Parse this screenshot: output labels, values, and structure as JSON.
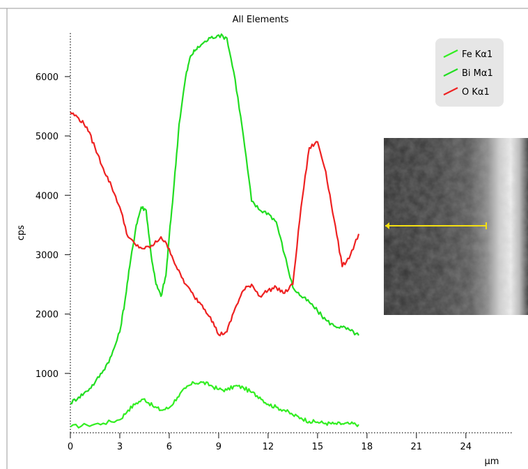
{
  "chart_data": {
    "type": "line",
    "title": "All Elements",
    "xlabel": "µm",
    "ylabel": "cps",
    "xlim": [
      0,
      26.8
    ],
    "ylim": [
      0,
      6750
    ],
    "x_ticks": [
      0,
      3,
      6,
      9,
      12,
      15,
      18,
      21,
      24
    ],
    "y_ticks": [
      1000,
      2000,
      3000,
      4000,
      5000,
      6000
    ],
    "grid": false,
    "legend_position": "top-right",
    "series": [
      {
        "name": "Fe Kα1",
        "color": "#33ee22",
        "x": [
          0,
          1,
          2,
          3,
          3.5,
          4,
          4.5,
          5,
          5.5,
          6,
          6.5,
          7,
          7.5,
          8,
          8.5,
          9,
          9.5,
          10,
          10.5,
          11,
          11.5,
          12,
          12.5,
          13,
          13.5,
          14,
          14.5,
          15,
          15.5,
          16,
          16.5,
          17,
          17.5
        ],
        "values": [
          100,
          130,
          160,
          220,
          380,
          500,
          570,
          450,
          380,
          420,
          600,
          750,
          840,
          850,
          800,
          730,
          720,
          790,
          760,
          680,
          600,
          480,
          430,
          380,
          300,
          250,
          190,
          180,
          160,
          150,
          150,
          150,
          140
        ]
      },
      {
        "name": "Bi Mα1",
        "color": "#22dd22",
        "x": [
          0,
          0.5,
          1,
          1.5,
          2,
          2.5,
          3,
          3.3,
          3.6,
          4,
          4.3,
          4.6,
          4.9,
          5.2,
          5.5,
          5.8,
          6,
          6.3,
          6.6,
          7,
          7.3,
          7.6,
          8,
          8.5,
          9,
          9.5,
          10,
          10.5,
          11,
          11.5,
          12,
          12.5,
          13,
          13.5,
          14,
          14.5,
          15,
          15.5,
          16,
          16.5,
          17,
          17.5
        ],
        "values": [
          500,
          600,
          700,
          850,
          1050,
          1300,
          1700,
          2200,
          2800,
          3500,
          3800,
          3750,
          3000,
          2500,
          2300,
          2650,
          3300,
          4200,
          5200,
          6000,
          6350,
          6450,
          6550,
          6650,
          6700,
          6650,
          5950,
          5000,
          3900,
          3750,
          3700,
          3550,
          3000,
          2450,
          2300,
          2200,
          2050,
          1900,
          1800,
          1780,
          1720,
          1640
        ]
      },
      {
        "name": "O Kα1",
        "color": "#ee2222",
        "x": [
          0,
          0.5,
          1,
          1.5,
          2,
          2.5,
          3,
          3.5,
          4,
          4.5,
          5,
          5.5,
          6,
          6.5,
          7,
          7.5,
          8,
          8.5,
          9,
          9.5,
          10,
          10.5,
          11,
          11.5,
          12,
          12.5,
          13,
          13.5,
          14,
          14.5,
          15,
          15.5,
          16,
          16.5,
          17,
          17.5
        ],
        "values": [
          5400,
          5300,
          5150,
          4800,
          4450,
          4150,
          3800,
          3300,
          3150,
          3100,
          3150,
          3300,
          3100,
          2750,
          2500,
          2300,
          2150,
          1950,
          1650,
          1700,
          2100,
          2400,
          2500,
          2300,
          2400,
          2450,
          2350,
          2500,
          3800,
          4800,
          4900,
          4400,
          3600,
          2800,
          3000,
          3350
        ]
      }
    ],
    "inset_image": {
      "description_icon": "sem-micrograph-inset",
      "scan_line_color": "#f5e010"
    }
  }
}
